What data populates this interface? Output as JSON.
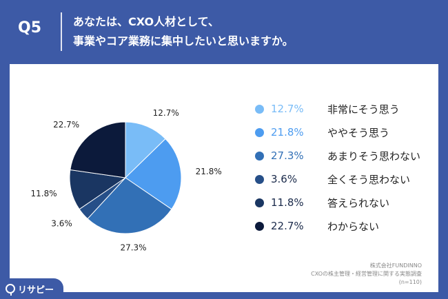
{
  "header": {
    "question_no": "Q5",
    "question_line1": "あなたは、CXO人材として、",
    "question_line2": "事業やコア業務に集中したいと思いますか。"
  },
  "chart_data": {
    "type": "pie",
    "categories": [
      "非常にそう思う",
      "ややそう思う",
      "あまりそう思わない",
      "全くそう思わない",
      "答えられない",
      "わからない"
    ],
    "values": [
      12.7,
      21.8,
      27.3,
      3.6,
      11.8,
      22.7
    ],
    "value_labels": [
      "12.7%",
      "21.8%",
      "27.3%",
      "3.6%",
      "11.8%",
      "22.7%"
    ],
    "colors": [
      "#79bcf7",
      "#4d9cf0",
      "#3270b6",
      "#264f88",
      "#1a3662",
      "#0c1a3b"
    ],
    "legend_placement": "right"
  },
  "credit": {
    "company": "株式会社FUNDINNO",
    "survey": "CXOの株主管理・経営管理に関する実態調査",
    "sample": "(n=110)"
  },
  "logo": {
    "text": "リサピー",
    "icon": "risapi-logo-icon"
  }
}
